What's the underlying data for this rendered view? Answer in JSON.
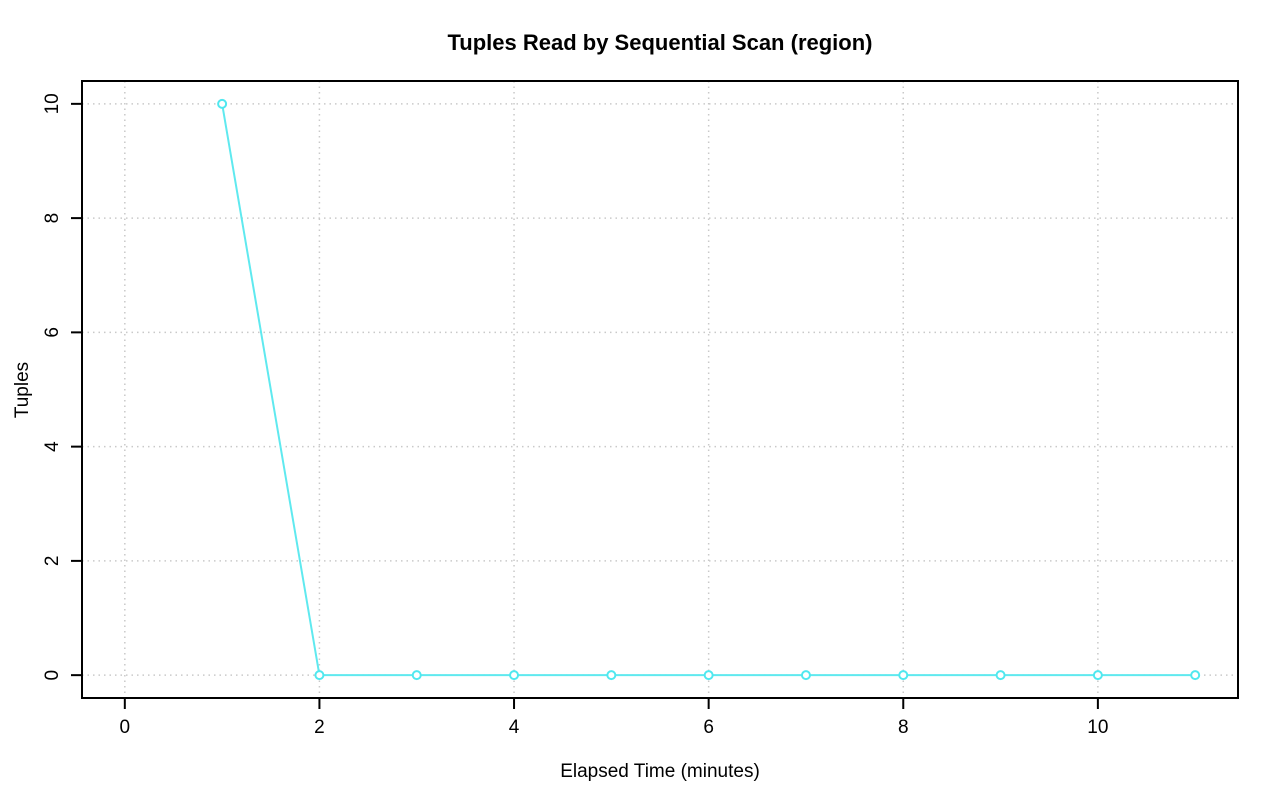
{
  "page": {
    "background_color": "#ffffff"
  },
  "chart_data": {
    "type": "line",
    "title": "Tuples Read by Sequential Scan (region)",
    "xlabel": "Elapsed Time (minutes)",
    "ylabel": "Tuples",
    "series": [
      {
        "name": "region",
        "x": [
          1,
          2,
          3,
          4,
          5,
          6,
          7,
          8,
          9,
          10,
          11
        ],
        "y": [
          10,
          0,
          0,
          0,
          0,
          0,
          0,
          0,
          0,
          0,
          0
        ],
        "marker": "open-circle",
        "line_style": "solid"
      }
    ],
    "xlim": [
      0,
      11
    ],
    "ylim": [
      0,
      10
    ],
    "xticks": [
      0,
      2,
      4,
      6,
      8,
      10
    ],
    "yticks": [
      0,
      2,
      4,
      6,
      8,
      10
    ],
    "grid": "dotted",
    "legend_position": "none",
    "colors": {
      "line": "#5fe9ef",
      "marker_stroke": "#4fe8ef",
      "marker_fill": "#ffffff",
      "grid": "#c9c9c9",
      "axis": "#000000",
      "text": "#000000",
      "background": "#ffffff"
    }
  }
}
